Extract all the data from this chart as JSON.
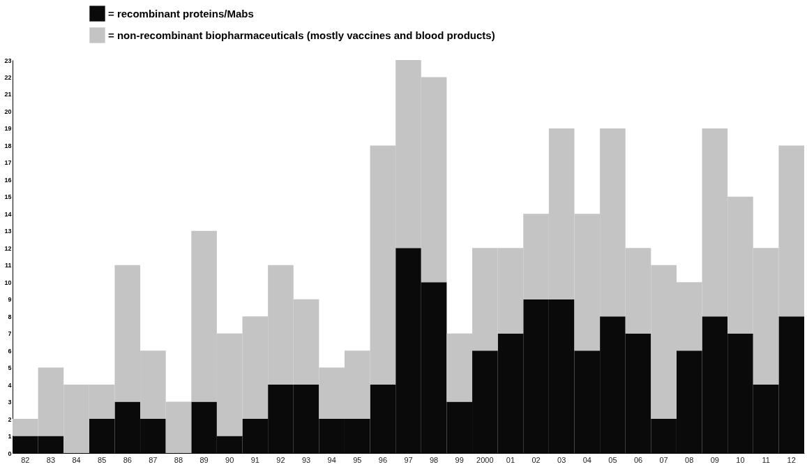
{
  "chart_data": {
    "type": "bar",
    "stacked": true,
    "categories": [
      "82",
      "83",
      "84",
      "85",
      "86",
      "87",
      "88",
      "89",
      "90",
      "91",
      "92",
      "93",
      "94",
      "95",
      "96",
      "97",
      "98",
      "99",
      "2000",
      "01",
      "02",
      "03",
      "04",
      "05",
      "06",
      "07",
      "08",
      "09",
      "10",
      "11",
      "12"
    ],
    "series": [
      {
        "name": "= recombinant proteins/Mabs",
        "color": "#0a0a0a",
        "values": [
          1,
          1,
          0,
          2,
          3,
          2,
          0,
          3,
          1,
          2,
          4,
          4,
          2,
          2,
          4,
          12,
          10,
          3,
          6,
          7,
          9,
          9,
          6,
          8,
          7,
          2,
          6,
          8,
          7,
          4,
          8
        ]
      },
      {
        "name": "= non-recombinant biopharmaceuticals (mostly vaccines and blood products)",
        "color": "#c4c4c4",
        "values": [
          1,
          4,
          4,
          2,
          8,
          4,
          3,
          10,
          6,
          6,
          7,
          5,
          3,
          4,
          14,
          11,
          12,
          4,
          6,
          5,
          5,
          10,
          8,
          11,
          5,
          9,
          4,
          11,
          8,
          8,
          10
        ]
      }
    ],
    "ylim": [
      0,
      23
    ],
    "yticks": [
      0,
      1,
      2,
      3,
      4,
      5,
      6,
      7,
      8,
      9,
      10,
      11,
      12,
      13,
      14,
      15,
      16,
      17,
      18,
      19,
      20,
      21,
      22,
      23
    ],
    "grid": false,
    "legend": "top left"
  }
}
